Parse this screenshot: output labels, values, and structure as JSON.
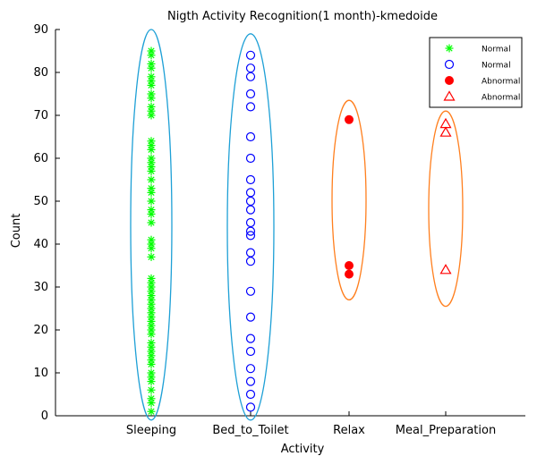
{
  "chart_data": {
    "type": "scatter",
    "title": "Nigth Activity Recognition(1 month)-kmedoide",
    "xlabel": "Activity",
    "ylabel": "Count",
    "categories": [
      "Sleeping",
      "Bed_to_Toilet",
      "Relax",
      "Meal_Preparation"
    ],
    "ylim": [
      0,
      90
    ],
    "yticks": [
      0,
      10,
      20,
      30,
      40,
      50,
      60,
      70,
      80,
      90
    ],
    "grid": false,
    "legend_position": "top-right",
    "legend": [
      {
        "label": "Normal",
        "marker": "star",
        "color": "#00ff00"
      },
      {
        "label": "Normal",
        "marker": "circle",
        "color": "#0000ff"
      },
      {
        "label": "Abnormal",
        "marker": "filled-circle",
        "color": "#ff0000"
      },
      {
        "label": "Abnormal",
        "marker": "triangle",
        "color": "#ff0000"
      }
    ],
    "series": [
      {
        "name": "Normal",
        "category": "Sleeping",
        "marker": "star",
        "color": "#00ff00",
        "values": [
          1,
          3,
          4,
          6,
          8,
          9,
          10,
          12,
          13,
          14,
          15,
          16,
          17,
          19,
          20,
          21,
          22,
          23,
          24,
          25,
          26,
          27,
          28,
          29,
          30,
          31,
          32,
          37,
          39,
          40,
          41,
          45,
          47,
          48,
          50,
          52,
          53,
          55,
          57,
          58,
          59,
          60,
          62,
          63,
          64,
          70,
          71,
          72,
          74,
          75,
          77,
          78,
          79,
          81,
          82,
          84,
          85
        ]
      },
      {
        "name": "Normal",
        "category": "Bed_to_Toilet",
        "marker": "circle",
        "color": "#0000ff",
        "values": [
          2,
          5,
          8,
          11,
          15,
          18,
          23,
          29,
          36,
          38,
          42,
          43,
          45,
          48,
          50,
          52,
          55,
          60,
          65,
          72,
          75,
          79,
          81,
          84
        ]
      },
      {
        "name": "Abnormal",
        "category": "Relax",
        "marker": "filled-circle",
        "color": "#ff0000",
        "values": [
          33,
          35,
          69
        ]
      },
      {
        "name": "Abnormal",
        "category": "Meal_Preparation",
        "marker": "triangle",
        "color": "#ff0000",
        "values": [
          34,
          66,
          68
        ]
      }
    ],
    "clusters": [
      {
        "category": "Sleeping",
        "ymin": -1,
        "ymax": 90,
        "color": "#1ea0d6"
      },
      {
        "category": "Bed_to_Toilet",
        "ymin": -1,
        "ymax": 89,
        "color": "#1ea0d6"
      },
      {
        "category": "Relax",
        "ymin": 27,
        "ymax": 73.5,
        "color": "#ff7f1e"
      },
      {
        "category": "Meal_Preparation",
        "ymin": 25.5,
        "ymax": 71,
        "color": "#ff7f1e"
      }
    ]
  }
}
